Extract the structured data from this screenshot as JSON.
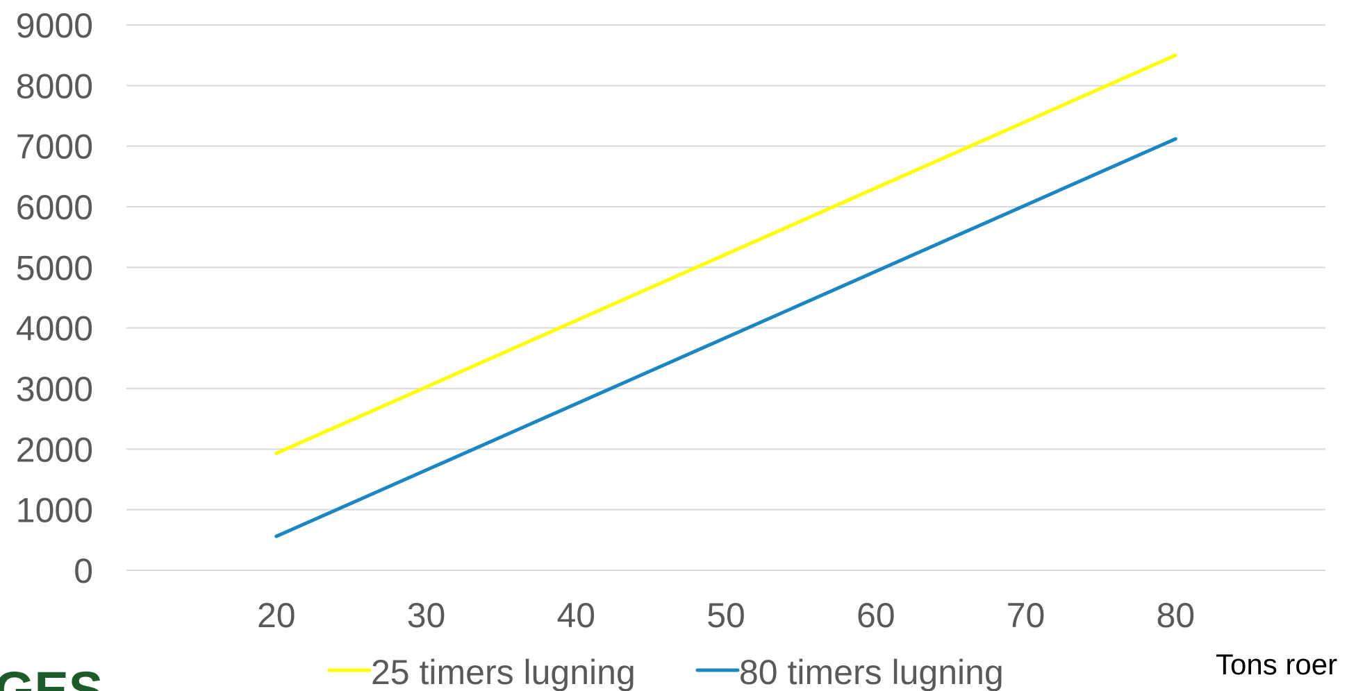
{
  "chart_data": {
    "type": "line",
    "x": [
      20,
      80
    ],
    "series": [
      {
        "name": "25 timers lugning",
        "color": "#ffff00",
        "values": [
          1930,
          8500
        ]
      },
      {
        "name": "80 timers lugning",
        "color": "#1b86c0",
        "values": [
          560,
          7120
        ]
      }
    ],
    "xlim": [
      10,
      90
    ],
    "ylim": [
      0,
      9000
    ],
    "x_ticks": [
      "20",
      "30",
      "40",
      "50",
      "60",
      "70",
      "80"
    ],
    "y_ticks": [
      "0",
      "1000",
      "2000",
      "3000",
      "4000",
      "5000",
      "6000",
      "7000",
      "8000",
      "9000"
    ],
    "xlabel": "Tons roer",
    "ylabel": "",
    "grid": true,
    "legend_position": "bottom"
  },
  "logo": {
    "text": "GES"
  },
  "colors": {
    "grid": "#d9d9d9",
    "tick_text": "#595959",
    "logo": "#1e5b2b"
  }
}
